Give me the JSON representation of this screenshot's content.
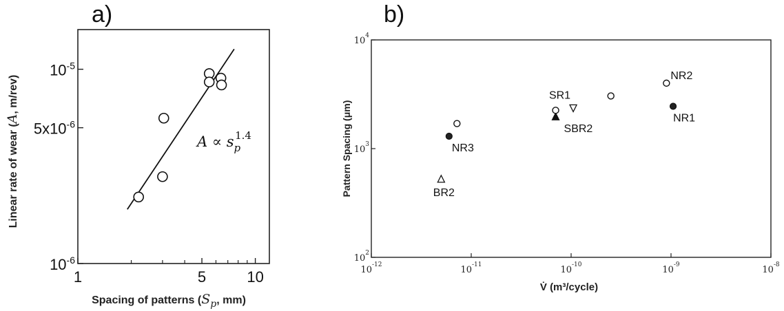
{
  "panels": {
    "a_label": "a)",
    "b_label": "b)"
  },
  "chart_data": [
    {
      "type": "scatter",
      "title": "",
      "xlabel_prefix": "Spacing of patterns (",
      "xlabel_symbol": "S",
      "xlabel_sub": "p",
      "xlabel_suffix": ", mm)",
      "ylabel_prefix": "Linear rate of wear (",
      "ylabel_symbol": "A",
      "ylabel_suffix": ", m/rev)",
      "x_scale": "log",
      "y_scale": "log",
      "xlim": [
        1,
        12
      ],
      "ylim": [
        1e-06,
        1.6e-05
      ],
      "x_ticks": [
        {
          "value": 1,
          "label": "1"
        },
        {
          "value": 5,
          "label": "5"
        },
        {
          "value": 10,
          "label": "10"
        }
      ],
      "y_ticks": [
        {
          "value": 1e-06,
          "label": "10",
          "exp": "-6"
        },
        {
          "value": 5e-06,
          "label": "5x10",
          "exp": "-6"
        },
        {
          "value": 1e-05,
          "label": "10",
          "exp": "-5"
        }
      ],
      "points": [
        {
          "x": 2.2,
          "y": 2.2e-06
        },
        {
          "x": 3.0,
          "y": 2.8e-06
        },
        {
          "x": 3.05,
          "y": 5.6e-06
        },
        {
          "x": 5.5,
          "y": 9.5e-06
        },
        {
          "x": 5.5,
          "y": 8.6e-06
        },
        {
          "x": 6.4,
          "y": 9e-06
        },
        {
          "x": 6.45,
          "y": 8.3e-06
        }
      ],
      "fit_line": {
        "x": [
          1.9,
          7.6
        ],
        "y": [
          1.9e-06,
          1.27e-05
        ]
      },
      "annotation": {
        "base": "A ∝ s",
        "sub": "p",
        "sup": "1.4"
      },
      "grid": false,
      "legend": "none"
    },
    {
      "type": "scatter",
      "title": "",
      "xlabel": "V̇ (m³/cycle)",
      "ylabel": "Pattern Spacing (μm)",
      "x_scale": "log",
      "y_scale": "log",
      "xlim": [
        1e-12,
        1e-08
      ],
      "ylim": [
        100,
        10000
      ],
      "x_ticks": [
        {
          "value": 1e-12,
          "label": "10",
          "exp": "-12"
        },
        {
          "value": 1e-11,
          "label": "10",
          "exp": "-11"
        },
        {
          "value": 1e-10,
          "label": "10",
          "exp": "-10"
        },
        {
          "value": 1e-09,
          "label": "10",
          "exp": "-9"
        },
        {
          "value": 1e-08,
          "label": "10",
          "exp": "-8"
        }
      ],
      "y_ticks": [
        {
          "value": 100,
          "label": "10",
          "exp": "2"
        },
        {
          "value": 1000,
          "label": "10",
          "exp": "3"
        },
        {
          "value": 10000,
          "label": "10",
          "exp": "4"
        }
      ],
      "points": [
        {
          "x": 5e-12,
          "y": 520,
          "marker": "triangle-up",
          "label": "BR2"
        },
        {
          "x": 6e-12,
          "y": 1300,
          "marker": "circle-dot",
          "label": "NR3"
        },
        {
          "x": 7.2e-12,
          "y": 1700,
          "marker": "circle",
          "label": ""
        },
        {
          "x": 1.05e-10,
          "y": 2350,
          "marker": "triangle-down",
          "label": "SR1"
        },
        {
          "x": 7e-11,
          "y": 1950,
          "marker": "triangle-filled",
          "label": "SBR2"
        },
        {
          "x": 7e-11,
          "y": 2250,
          "marker": "circle",
          "label": ""
        },
        {
          "x": 2.5e-10,
          "y": 3050,
          "marker": "circle",
          "label": ""
        },
        {
          "x": 9e-10,
          "y": 4000,
          "marker": "circle",
          "label": "NR2"
        },
        {
          "x": 1.05e-09,
          "y": 2450,
          "marker": "circle-dot",
          "label": "NR1"
        }
      ],
      "grid": false,
      "legend": "none"
    }
  ]
}
